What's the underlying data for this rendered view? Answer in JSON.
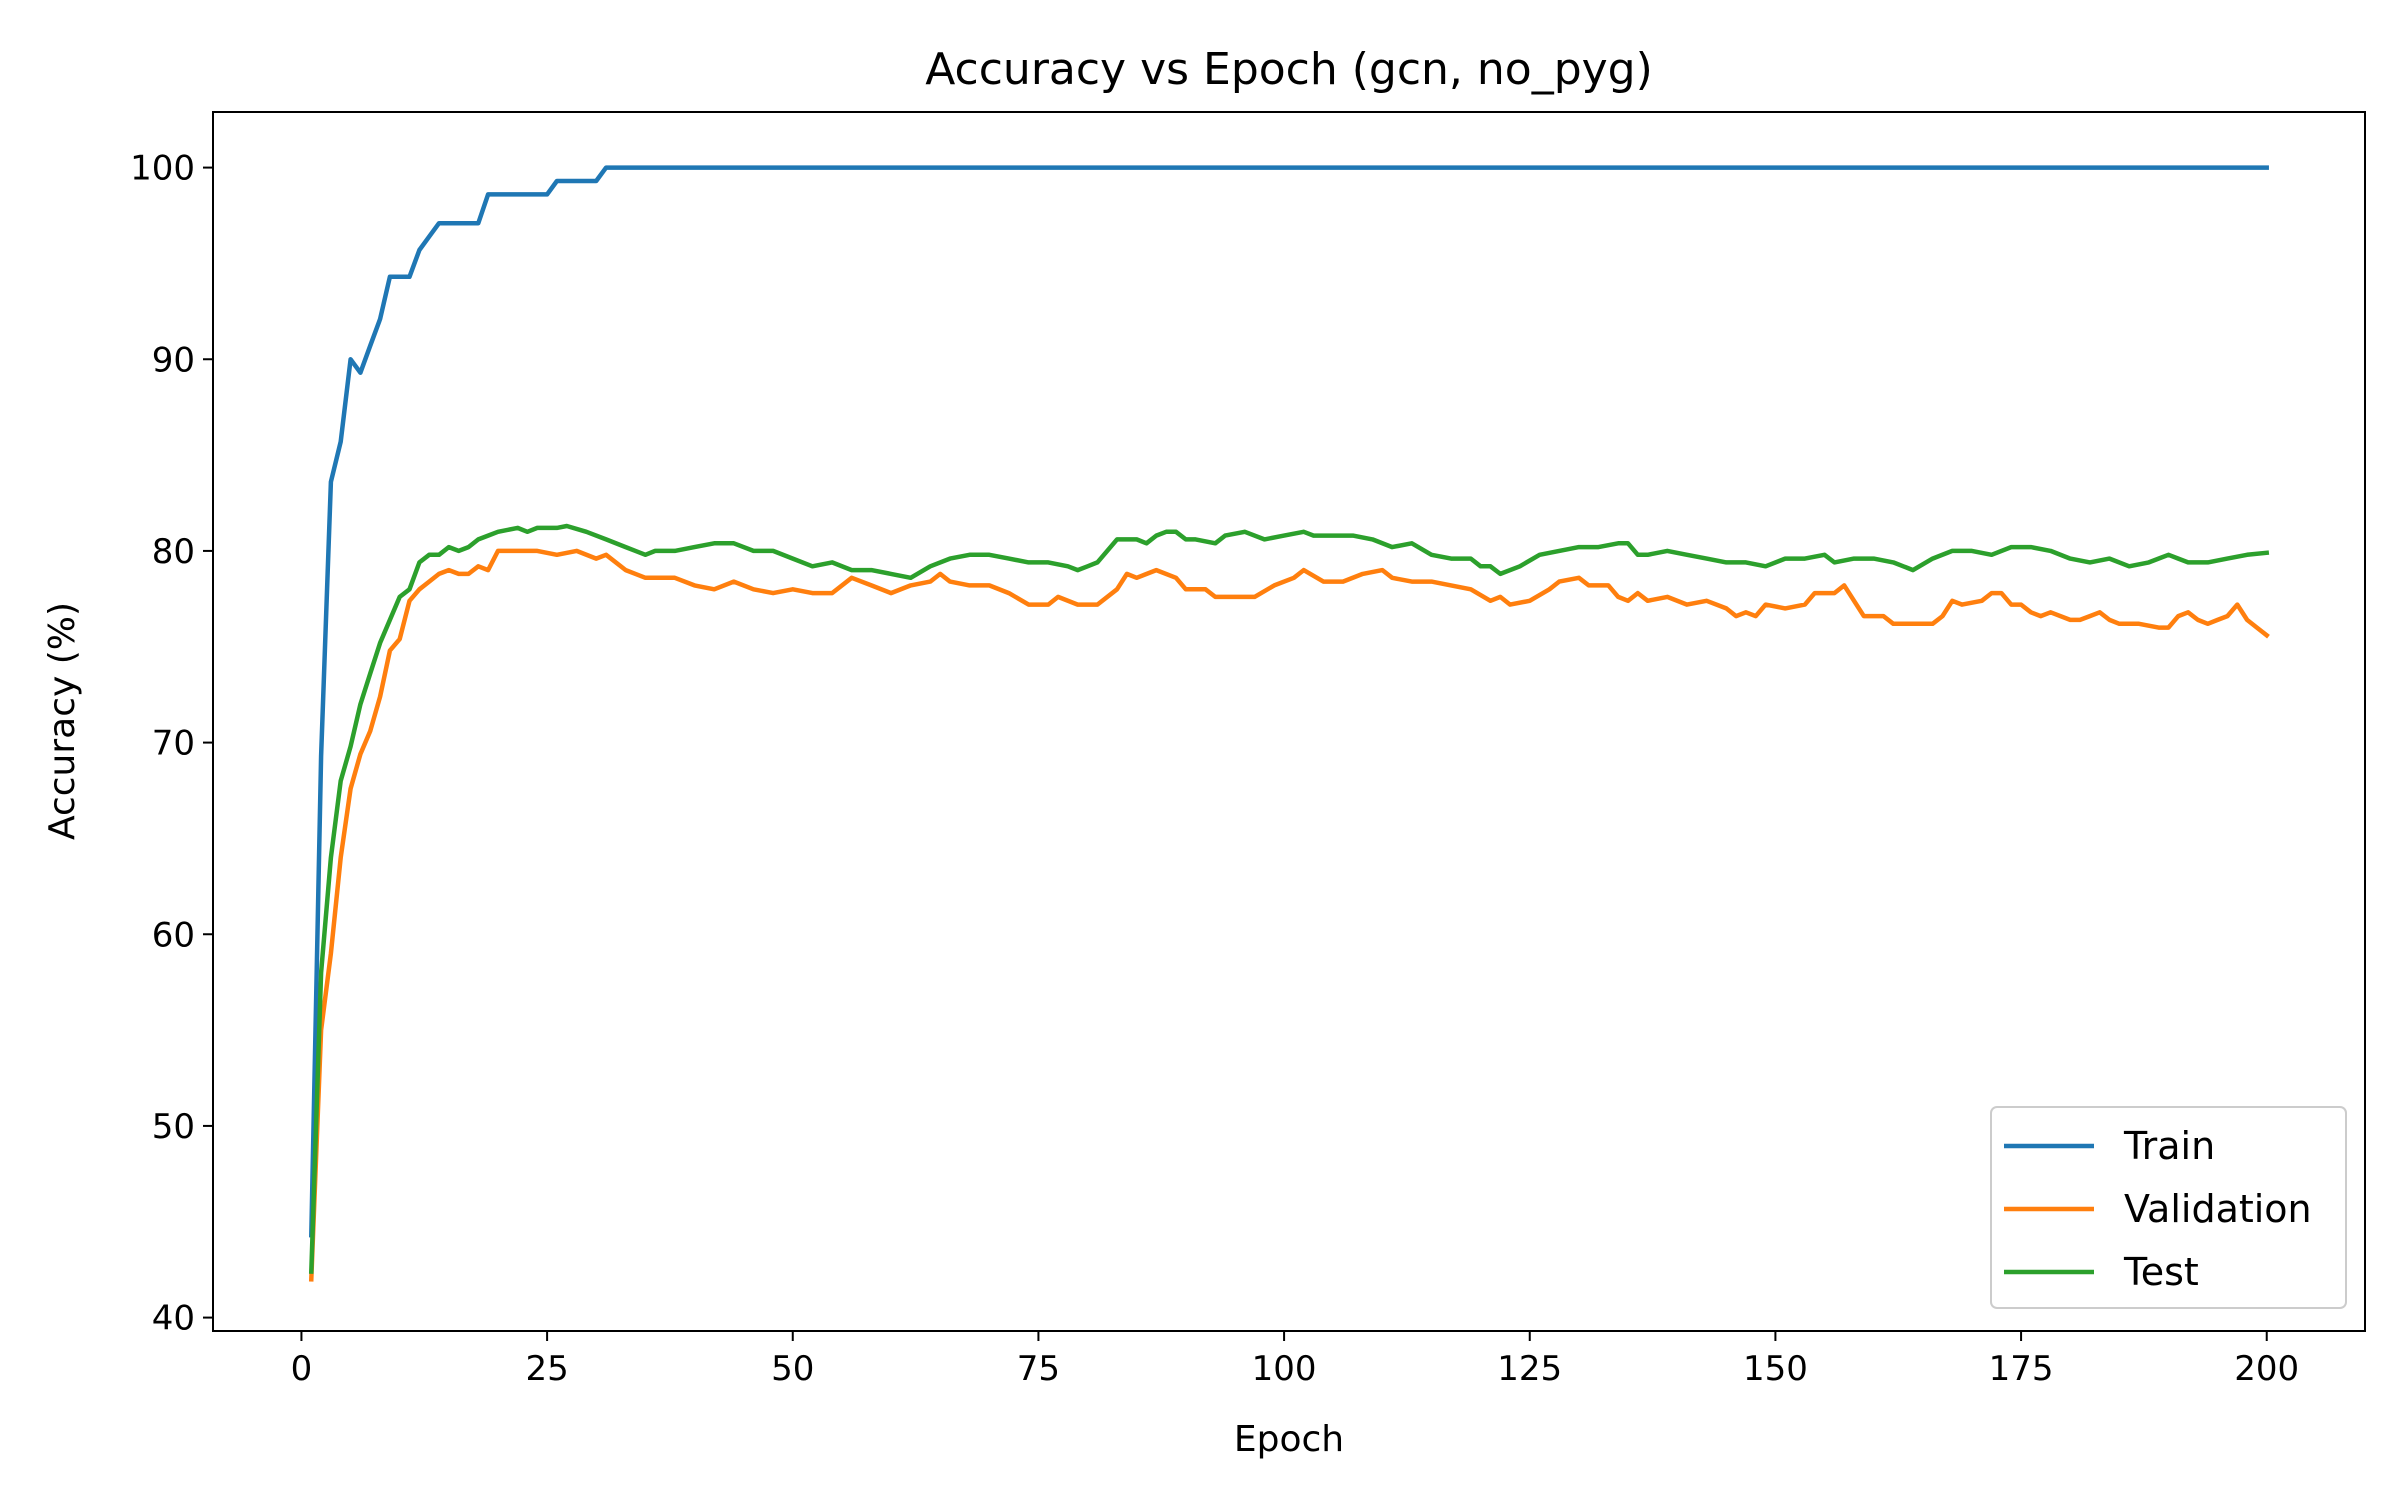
{
  "chart_data": {
    "type": "line",
    "title": "Accuracy vs Epoch (gcn, no_pyg)",
    "xlabel": "Epoch",
    "ylabel": "Accuracy (%)",
    "xlim": [
      -9,
      210
    ],
    "ylim": [
      39.3,
      102.9
    ],
    "xticks": [
      0,
      25,
      50,
      75,
      100,
      125,
      150,
      175,
      200
    ],
    "yticks": [
      40,
      50,
      60,
      70,
      80,
      90,
      100
    ],
    "grid": false,
    "legend": "lower-right",
    "series": [
      {
        "name": "Train",
        "color": "#1f77b4",
        "points": [
          [
            1,
            44.3
          ],
          [
            2,
            69.3
          ],
          [
            3,
            83.6
          ],
          [
            4,
            85.7
          ],
          [
            5,
            90.0
          ],
          [
            6,
            89.3
          ],
          [
            7,
            90.7
          ],
          [
            8,
            92.1
          ],
          [
            9,
            94.3
          ],
          [
            10,
            94.3
          ],
          [
            11,
            94.3
          ],
          [
            12,
            95.7
          ],
          [
            13,
            96.4
          ],
          [
            14,
            97.1
          ],
          [
            15,
            97.1
          ],
          [
            16,
            97.1
          ],
          [
            17,
            97.1
          ],
          [
            18,
            97.1
          ],
          [
            19,
            98.6
          ],
          [
            20,
            98.6
          ],
          [
            21,
            98.6
          ],
          [
            22,
            98.6
          ],
          [
            23,
            98.6
          ],
          [
            24,
            98.6
          ],
          [
            25,
            98.6
          ],
          [
            26,
            99.3
          ],
          [
            27,
            99.3
          ],
          [
            28,
            99.3
          ],
          [
            29,
            99.3
          ],
          [
            30,
            99.3
          ],
          [
            31,
            100
          ],
          [
            32,
            100
          ],
          [
            50,
            100
          ],
          [
            75,
            100
          ],
          [
            100,
            100
          ],
          [
            125,
            100
          ],
          [
            150,
            100
          ],
          [
            175,
            100
          ],
          [
            200,
            100
          ]
        ]
      },
      {
        "name": "Validation",
        "color": "#ff7f0e",
        "points": [
          [
            1,
            42.0
          ],
          [
            2,
            55.0
          ],
          [
            3,
            59.0
          ],
          [
            4,
            64.0
          ],
          [
            5,
            67.6
          ],
          [
            6,
            69.4
          ],
          [
            7,
            70.6
          ],
          [
            8,
            72.4
          ],
          [
            9,
            74.8
          ],
          [
            10,
            75.4
          ],
          [
            11,
            77.4
          ],
          [
            12,
            78.0
          ],
          [
            13,
            78.4
          ],
          [
            14,
            78.8
          ],
          [
            15,
            79.0
          ],
          [
            16,
            78.8
          ],
          [
            17,
            78.8
          ],
          [
            18,
            79.2
          ],
          [
            19,
            79.0
          ],
          [
            20,
            80.0
          ],
          [
            22,
            80.0
          ],
          [
            24,
            80.0
          ],
          [
            26,
            79.8
          ],
          [
            28,
            80.0
          ],
          [
            30,
            79.6
          ],
          [
            31,
            79.8
          ],
          [
            33,
            79.0
          ],
          [
            35,
            78.6
          ],
          [
            38,
            78.6
          ],
          [
            40,
            78.2
          ],
          [
            42,
            78.0
          ],
          [
            44,
            78.4
          ],
          [
            46,
            78.0
          ],
          [
            48,
            77.8
          ],
          [
            50,
            78.0
          ],
          [
            52,
            77.8
          ],
          [
            54,
            77.8
          ],
          [
            56,
            78.6
          ],
          [
            58,
            78.2
          ],
          [
            60,
            77.8
          ],
          [
            62,
            78.2
          ],
          [
            64,
            78.4
          ],
          [
            65,
            78.8
          ],
          [
            66,
            78.4
          ],
          [
            68,
            78.2
          ],
          [
            70,
            78.2
          ],
          [
            72,
            77.8
          ],
          [
            74,
            77.2
          ],
          [
            76,
            77.2
          ],
          [
            77,
            77.6
          ],
          [
            79,
            77.2
          ],
          [
            81,
            77.2
          ],
          [
            83,
            78.0
          ],
          [
            84,
            78.8
          ],
          [
            85,
            78.6
          ],
          [
            87,
            79.0
          ],
          [
            89,
            78.6
          ],
          [
            90,
            78.0
          ],
          [
            92,
            78.0
          ],
          [
            93,
            77.6
          ],
          [
            95,
            77.6
          ],
          [
            97,
            77.6
          ],
          [
            99,
            78.2
          ],
          [
            101,
            78.6
          ],
          [
            102,
            79.0
          ],
          [
            104,
            78.4
          ],
          [
            106,
            78.4
          ],
          [
            108,
            78.8
          ],
          [
            110,
            79.0
          ],
          [
            111,
            78.6
          ],
          [
            113,
            78.4
          ],
          [
            115,
            78.4
          ],
          [
            117,
            78.2
          ],
          [
            119,
            78.0
          ],
          [
            121,
            77.4
          ],
          [
            122,
            77.6
          ],
          [
            123,
            77.2
          ],
          [
            125,
            77.4
          ],
          [
            127,
            78.0
          ],
          [
            128,
            78.4
          ],
          [
            130,
            78.6
          ],
          [
            131,
            78.2
          ],
          [
            133,
            78.2
          ],
          [
            134,
            77.6
          ],
          [
            135,
            77.4
          ],
          [
            136,
            77.8
          ],
          [
            137,
            77.4
          ],
          [
            139,
            77.6
          ],
          [
            141,
            77.2
          ],
          [
            143,
            77.4
          ],
          [
            145,
            77.0
          ],
          [
            146,
            76.6
          ],
          [
            147,
            76.8
          ],
          [
            148,
            76.6
          ],
          [
            149,
            77.2
          ],
          [
            151,
            77.0
          ],
          [
            153,
            77.2
          ],
          [
            154,
            77.8
          ],
          [
            156,
            77.8
          ],
          [
            157,
            78.2
          ],
          [
            159,
            76.6
          ],
          [
            161,
            76.6
          ],
          [
            162,
            76.2
          ],
          [
            164,
            76.2
          ],
          [
            166,
            76.2
          ],
          [
            167,
            76.6
          ],
          [
            168,
            77.4
          ],
          [
            169,
            77.2
          ],
          [
            171,
            77.4
          ],
          [
            172,
            77.8
          ],
          [
            173,
            77.8
          ],
          [
            174,
            77.2
          ],
          [
            175,
            77.2
          ],
          [
            176,
            76.8
          ],
          [
            177,
            76.6
          ],
          [
            178,
            76.8
          ],
          [
            180,
            76.4
          ],
          [
            181,
            76.4
          ],
          [
            182,
            76.6
          ],
          [
            183,
            76.8
          ],
          [
            184,
            76.4
          ],
          [
            185,
            76.2
          ],
          [
            187,
            76.2
          ],
          [
            189,
            76.0
          ],
          [
            190,
            76.0
          ],
          [
            191,
            76.6
          ],
          [
            192,
            76.8
          ],
          [
            193,
            76.4
          ],
          [
            194,
            76.2
          ],
          [
            195,
            76.4
          ],
          [
            196,
            76.6
          ],
          [
            197,
            77.2
          ],
          [
            198,
            76.4
          ],
          [
            199,
            76.0
          ],
          [
            200,
            75.6
          ]
        ]
      },
      {
        "name": "Test",
        "color": "#2ca02c",
        "points": [
          [
            1,
            42.4
          ],
          [
            2,
            58.0
          ],
          [
            3,
            64.0
          ],
          [
            4,
            68.0
          ],
          [
            5,
            69.8
          ],
          [
            6,
            72.0
          ],
          [
            7,
            73.6
          ],
          [
            8,
            75.2
          ],
          [
            9,
            76.4
          ],
          [
            10,
            77.6
          ],
          [
            11,
            78.0
          ],
          [
            12,
            79.4
          ],
          [
            13,
            79.8
          ],
          [
            14,
            79.8
          ],
          [
            15,
            80.2
          ],
          [
            16,
            80.0
          ],
          [
            17,
            80.2
          ],
          [
            18,
            80.6
          ],
          [
            19,
            80.8
          ],
          [
            20,
            81.0
          ],
          [
            22,
            81.2
          ],
          [
            23,
            81.0
          ],
          [
            24,
            81.2
          ],
          [
            26,
            81.2
          ],
          [
            27,
            81.3
          ],
          [
            29,
            81.0
          ],
          [
            31,
            80.6
          ],
          [
            33,
            80.2
          ],
          [
            35,
            79.8
          ],
          [
            36,
            80.0
          ],
          [
            38,
            80.0
          ],
          [
            40,
            80.2
          ],
          [
            42,
            80.4
          ],
          [
            44,
            80.4
          ],
          [
            46,
            80.0
          ],
          [
            48,
            80.0
          ],
          [
            50,
            79.6
          ],
          [
            52,
            79.2
          ],
          [
            54,
            79.4
          ],
          [
            56,
            79.0
          ],
          [
            58,
            79.0
          ],
          [
            60,
            78.8
          ],
          [
            62,
            78.6
          ],
          [
            64,
            79.2
          ],
          [
            66,
            79.6
          ],
          [
            68,
            79.8
          ],
          [
            70,
            79.8
          ],
          [
            72,
            79.6
          ],
          [
            74,
            79.4
          ],
          [
            76,
            79.4
          ],
          [
            78,
            79.2
          ],
          [
            79,
            79.0
          ],
          [
            80,
            79.2
          ],
          [
            81,
            79.4
          ],
          [
            83,
            80.6
          ],
          [
            84,
            80.6
          ],
          [
            85,
            80.6
          ],
          [
            86,
            80.4
          ],
          [
            87,
            80.8
          ],
          [
            88,
            81.0
          ],
          [
            89,
            81.0
          ],
          [
            90,
            80.6
          ],
          [
            91,
            80.6
          ],
          [
            93,
            80.4
          ],
          [
            94,
            80.8
          ],
          [
            96,
            81.0
          ],
          [
            98,
            80.6
          ],
          [
            100,
            80.8
          ],
          [
            102,
            81.0
          ],
          [
            103,
            80.8
          ],
          [
            105,
            80.8
          ],
          [
            107,
            80.8
          ],
          [
            109,
            80.6
          ],
          [
            111,
            80.2
          ],
          [
            113,
            80.4
          ],
          [
            115,
            79.8
          ],
          [
            117,
            79.6
          ],
          [
            119,
            79.6
          ],
          [
            120,
            79.2
          ],
          [
            121,
            79.2
          ],
          [
            122,
            78.8
          ],
          [
            124,
            79.2
          ],
          [
            126,
            79.8
          ],
          [
            128,
            80.0
          ],
          [
            130,
            80.2
          ],
          [
            132,
            80.2
          ],
          [
            134,
            80.4
          ],
          [
            135,
            80.4
          ],
          [
            136,
            79.8
          ],
          [
            137,
            79.8
          ],
          [
            139,
            80.0
          ],
          [
            141,
            79.8
          ],
          [
            143,
            79.6
          ],
          [
            145,
            79.4
          ],
          [
            147,
            79.4
          ],
          [
            149,
            79.2
          ],
          [
            151,
            79.6
          ],
          [
            153,
            79.6
          ],
          [
            155,
            79.8
          ],
          [
            156,
            79.4
          ],
          [
            158,
            79.6
          ],
          [
            160,
            79.6
          ],
          [
            162,
            79.4
          ],
          [
            164,
            79.0
          ],
          [
            166,
            79.6
          ],
          [
            168,
            80.0
          ],
          [
            170,
            80.0
          ],
          [
            172,
            79.8
          ],
          [
            174,
            80.2
          ],
          [
            176,
            80.2
          ],
          [
            178,
            80.0
          ],
          [
            180,
            79.6
          ],
          [
            182,
            79.4
          ],
          [
            184,
            79.6
          ],
          [
            186,
            79.2
          ],
          [
            188,
            79.4
          ],
          [
            190,
            79.8
          ],
          [
            191,
            79.6
          ],
          [
            192,
            79.4
          ],
          [
            194,
            79.4
          ],
          [
            196,
            79.6
          ],
          [
            198,
            79.8
          ],
          [
            200,
            79.9
          ]
        ]
      }
    ]
  }
}
